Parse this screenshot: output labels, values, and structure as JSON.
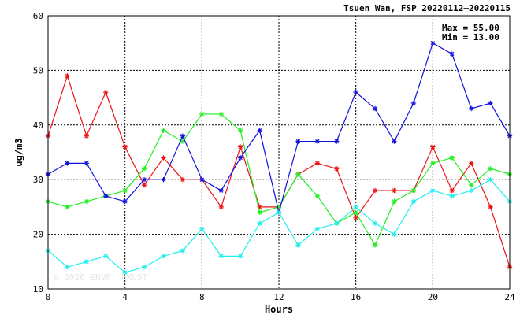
{
  "chart_data": {
    "type": "line",
    "title": "Tsuen Wan, FSP 20220112–20220115",
    "xlabel": "Hours",
    "ylabel": "ug/m3",
    "xlim": [
      0,
      24
    ],
    "ylim": [
      10,
      60
    ],
    "xticks": [
      0,
      4,
      8,
      12,
      16,
      20,
      24
    ],
    "yticks": [
      10,
      20,
      30,
      40,
      50,
      60
    ],
    "grid": true,
    "annotations": {
      "max": "Max = 55.00",
      "min": "Min = 13.00"
    },
    "watermark": "© 2026 ENVF, HKUST",
    "x": [
      0,
      1,
      2,
      3,
      4,
      5,
      6,
      7,
      8,
      9,
      10,
      11,
      12,
      13,
      14,
      15,
      16,
      17,
      18,
      19,
      20,
      21,
      22,
      23,
      24
    ],
    "series": [
      {
        "color": "#ee1111",
        "values": [
          38,
          49,
          38,
          46,
          36,
          29,
          34,
          30,
          30,
          25,
          36,
          25,
          25,
          31,
          33,
          32,
          23,
          28,
          28,
          28,
          36,
          28,
          33,
          25,
          14
        ]
      },
      {
        "color": "#22ee22",
        "values": [
          26,
          25,
          26,
          27,
          28,
          32,
          39,
          37,
          42,
          42,
          39,
          24,
          25,
          31,
          27,
          22,
          24,
          18,
          26,
          28,
          33,
          34,
          29,
          32,
          31
        ]
      },
      {
        "color": "#1111dd",
        "values": [
          31,
          33,
          33,
          27,
          26,
          30,
          30,
          38,
          30,
          28,
          34,
          39,
          24,
          37,
          37,
          37,
          46,
          43,
          37,
          44,
          55,
          53,
          43,
          44,
          38
        ]
      },
      {
        "color": "#22eeee",
        "values": [
          17,
          14,
          15,
          16,
          13,
          14,
          16,
          17,
          21,
          16,
          16,
          22,
          24,
          18,
          21,
          22,
          25,
          22,
          20,
          26,
          28,
          27,
          28,
          30,
          26
        ]
      }
    ]
  }
}
